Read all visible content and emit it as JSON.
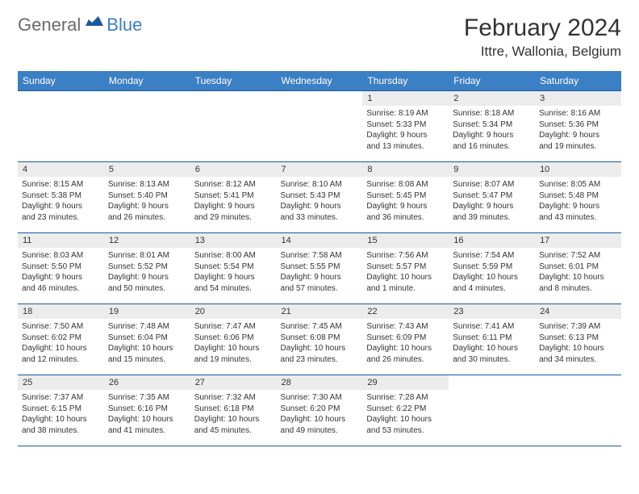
{
  "logo": {
    "part1": "General",
    "part2": "Blue"
  },
  "title": "February 2024",
  "location": "Ittre, Wallonia, Belgium",
  "colors": {
    "header_bg": "#3b7fc4",
    "header_border": "#1b5a9e",
    "daynum_bg": "#ececec",
    "text": "#333333",
    "logo_gray": "#6a6a6a",
    "logo_blue": "#3b7fc4"
  },
  "weekdays": [
    "Sunday",
    "Monday",
    "Tuesday",
    "Wednesday",
    "Thursday",
    "Friday",
    "Saturday"
  ],
  "weeks": [
    [
      {
        "blank": true
      },
      {
        "blank": true
      },
      {
        "blank": true
      },
      {
        "blank": true
      },
      {
        "num": "1",
        "sunrise": "Sunrise: 8:19 AM",
        "sunset": "Sunset: 5:33 PM",
        "day1": "Daylight: 9 hours",
        "day2": "and 13 minutes."
      },
      {
        "num": "2",
        "sunrise": "Sunrise: 8:18 AM",
        "sunset": "Sunset: 5:34 PM",
        "day1": "Daylight: 9 hours",
        "day2": "and 16 minutes."
      },
      {
        "num": "3",
        "sunrise": "Sunrise: 8:16 AM",
        "sunset": "Sunset: 5:36 PM",
        "day1": "Daylight: 9 hours",
        "day2": "and 19 minutes."
      }
    ],
    [
      {
        "num": "4",
        "sunrise": "Sunrise: 8:15 AM",
        "sunset": "Sunset: 5:38 PM",
        "day1": "Daylight: 9 hours",
        "day2": "and 23 minutes."
      },
      {
        "num": "5",
        "sunrise": "Sunrise: 8:13 AM",
        "sunset": "Sunset: 5:40 PM",
        "day1": "Daylight: 9 hours",
        "day2": "and 26 minutes."
      },
      {
        "num": "6",
        "sunrise": "Sunrise: 8:12 AM",
        "sunset": "Sunset: 5:41 PM",
        "day1": "Daylight: 9 hours",
        "day2": "and 29 minutes."
      },
      {
        "num": "7",
        "sunrise": "Sunrise: 8:10 AM",
        "sunset": "Sunset: 5:43 PM",
        "day1": "Daylight: 9 hours",
        "day2": "and 33 minutes."
      },
      {
        "num": "8",
        "sunrise": "Sunrise: 8:08 AM",
        "sunset": "Sunset: 5:45 PM",
        "day1": "Daylight: 9 hours",
        "day2": "and 36 minutes."
      },
      {
        "num": "9",
        "sunrise": "Sunrise: 8:07 AM",
        "sunset": "Sunset: 5:47 PM",
        "day1": "Daylight: 9 hours",
        "day2": "and 39 minutes."
      },
      {
        "num": "10",
        "sunrise": "Sunrise: 8:05 AM",
        "sunset": "Sunset: 5:48 PM",
        "day1": "Daylight: 9 hours",
        "day2": "and 43 minutes."
      }
    ],
    [
      {
        "num": "11",
        "sunrise": "Sunrise: 8:03 AM",
        "sunset": "Sunset: 5:50 PM",
        "day1": "Daylight: 9 hours",
        "day2": "and 46 minutes."
      },
      {
        "num": "12",
        "sunrise": "Sunrise: 8:01 AM",
        "sunset": "Sunset: 5:52 PM",
        "day1": "Daylight: 9 hours",
        "day2": "and 50 minutes."
      },
      {
        "num": "13",
        "sunrise": "Sunrise: 8:00 AM",
        "sunset": "Sunset: 5:54 PM",
        "day1": "Daylight: 9 hours",
        "day2": "and 54 minutes."
      },
      {
        "num": "14",
        "sunrise": "Sunrise: 7:58 AM",
        "sunset": "Sunset: 5:55 PM",
        "day1": "Daylight: 9 hours",
        "day2": "and 57 minutes."
      },
      {
        "num": "15",
        "sunrise": "Sunrise: 7:56 AM",
        "sunset": "Sunset: 5:57 PM",
        "day1": "Daylight: 10 hours",
        "day2": "and 1 minute."
      },
      {
        "num": "16",
        "sunrise": "Sunrise: 7:54 AM",
        "sunset": "Sunset: 5:59 PM",
        "day1": "Daylight: 10 hours",
        "day2": "and 4 minutes."
      },
      {
        "num": "17",
        "sunrise": "Sunrise: 7:52 AM",
        "sunset": "Sunset: 6:01 PM",
        "day1": "Daylight: 10 hours",
        "day2": "and 8 minutes."
      }
    ],
    [
      {
        "num": "18",
        "sunrise": "Sunrise: 7:50 AM",
        "sunset": "Sunset: 6:02 PM",
        "day1": "Daylight: 10 hours",
        "day2": "and 12 minutes."
      },
      {
        "num": "19",
        "sunrise": "Sunrise: 7:48 AM",
        "sunset": "Sunset: 6:04 PM",
        "day1": "Daylight: 10 hours",
        "day2": "and 15 minutes."
      },
      {
        "num": "20",
        "sunrise": "Sunrise: 7:47 AM",
        "sunset": "Sunset: 6:06 PM",
        "day1": "Daylight: 10 hours",
        "day2": "and 19 minutes."
      },
      {
        "num": "21",
        "sunrise": "Sunrise: 7:45 AM",
        "sunset": "Sunset: 6:08 PM",
        "day1": "Daylight: 10 hours",
        "day2": "and 23 minutes."
      },
      {
        "num": "22",
        "sunrise": "Sunrise: 7:43 AM",
        "sunset": "Sunset: 6:09 PM",
        "day1": "Daylight: 10 hours",
        "day2": "and 26 minutes."
      },
      {
        "num": "23",
        "sunrise": "Sunrise: 7:41 AM",
        "sunset": "Sunset: 6:11 PM",
        "day1": "Daylight: 10 hours",
        "day2": "and 30 minutes."
      },
      {
        "num": "24",
        "sunrise": "Sunrise: 7:39 AM",
        "sunset": "Sunset: 6:13 PM",
        "day1": "Daylight: 10 hours",
        "day2": "and 34 minutes."
      }
    ],
    [
      {
        "num": "25",
        "sunrise": "Sunrise: 7:37 AM",
        "sunset": "Sunset: 6:15 PM",
        "day1": "Daylight: 10 hours",
        "day2": "and 38 minutes."
      },
      {
        "num": "26",
        "sunrise": "Sunrise: 7:35 AM",
        "sunset": "Sunset: 6:16 PM",
        "day1": "Daylight: 10 hours",
        "day2": "and 41 minutes."
      },
      {
        "num": "27",
        "sunrise": "Sunrise: 7:32 AM",
        "sunset": "Sunset: 6:18 PM",
        "day1": "Daylight: 10 hours",
        "day2": "and 45 minutes."
      },
      {
        "num": "28",
        "sunrise": "Sunrise: 7:30 AM",
        "sunset": "Sunset: 6:20 PM",
        "day1": "Daylight: 10 hours",
        "day2": "and 49 minutes."
      },
      {
        "num": "29",
        "sunrise": "Sunrise: 7:28 AM",
        "sunset": "Sunset: 6:22 PM",
        "day1": "Daylight: 10 hours",
        "day2": "and 53 minutes."
      },
      {
        "blank": true
      },
      {
        "blank": true
      }
    ]
  ]
}
